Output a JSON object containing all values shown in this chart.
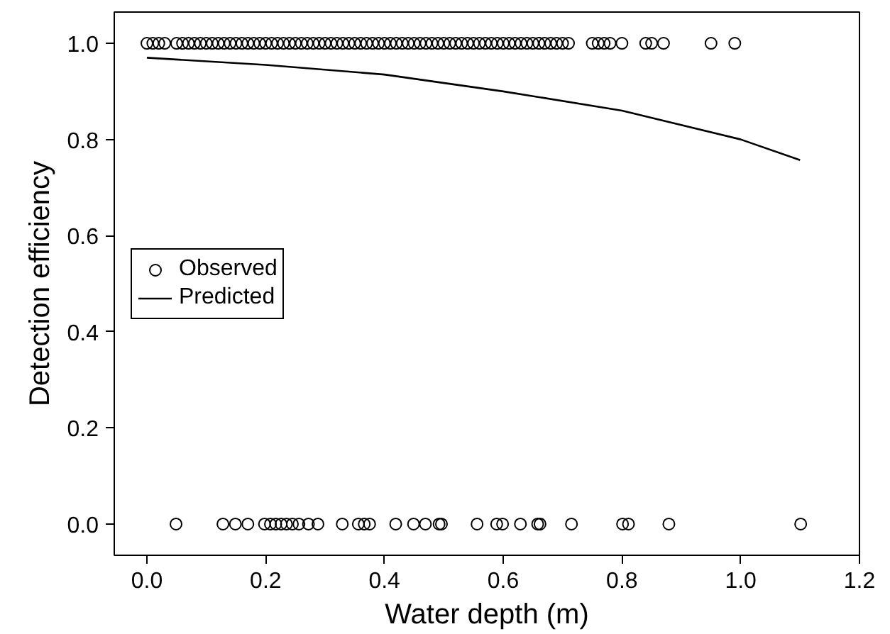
{
  "chart_data": {
    "type": "scatter",
    "xlabel": "Water depth (m)",
    "ylabel": "Detection efficiency",
    "xlim": [
      -0.055,
      1.2
    ],
    "ylim": [
      -0.065,
      1.065
    ],
    "xticks": [
      {
        "value": 0,
        "label": "0.0"
      },
      0.2,
      0.4,
      0.6,
      0.8,
      {
        "value": 1,
        "label": "1.0"
      },
      1.2
    ],
    "yticks": [
      {
        "value": 0,
        "label": "0.0"
      },
      0.2,
      0.4,
      0.6,
      0.8,
      {
        "value": 1,
        "label": "1.0"
      }
    ],
    "grid": false,
    "legend": "left",
    "series": [
      {
        "name": "Observed",
        "marker": "circle",
        "color": "#000000",
        "x": [
          0.0,
          0.01,
          0.02,
          0.03,
          0.05,
          0.06,
          0.07,
          0.08,
          0.09,
          0.1,
          0.11,
          0.12,
          0.13,
          0.14,
          0.15,
          0.16,
          0.17,
          0.18,
          0.19,
          0.2,
          0.21,
          0.22,
          0.23,
          0.24,
          0.25,
          0.26,
          0.27,
          0.28,
          0.29,
          0.3,
          0.31,
          0.32,
          0.33,
          0.34,
          0.35,
          0.36,
          0.37,
          0.38,
          0.39,
          0.4,
          0.41,
          0.42,
          0.43,
          0.44,
          0.45,
          0.46,
          0.47,
          0.48,
          0.49,
          0.5,
          0.51,
          0.52,
          0.53,
          0.54,
          0.55,
          0.56,
          0.57,
          0.58,
          0.59,
          0.6,
          0.61,
          0.62,
          0.63,
          0.64,
          0.65,
          0.66,
          0.67,
          0.68,
          0.69,
          0.7,
          0.71,
          0.75,
          0.76,
          0.77,
          0.78,
          0.8,
          0.84,
          0.85,
          0.87,
          0.95,
          0.99,
          0.049,
          0.128,
          0.149,
          0.17,
          0.198,
          0.208,
          0.217,
          0.226,
          0.235,
          0.245,
          0.256,
          0.272,
          0.288,
          0.329,
          0.356,
          0.366,
          0.375,
          0.419,
          0.449,
          0.469,
          0.492,
          0.496,
          0.556,
          0.589,
          0.599,
          0.629,
          0.658,
          0.662,
          0.715,
          0.801,
          0.811,
          0.879,
          1.101
        ],
        "values": [
          1,
          1,
          1,
          1,
          1,
          1,
          1,
          1,
          1,
          1,
          1,
          1,
          1,
          1,
          1,
          1,
          1,
          1,
          1,
          1,
          1,
          1,
          1,
          1,
          1,
          1,
          1,
          1,
          1,
          1,
          1,
          1,
          1,
          1,
          1,
          1,
          1,
          1,
          1,
          1,
          1,
          1,
          1,
          1,
          1,
          1,
          1,
          1,
          1,
          1,
          1,
          1,
          1,
          1,
          1,
          1,
          1,
          1,
          1,
          1,
          1,
          1,
          1,
          1,
          1,
          1,
          1,
          1,
          1,
          1,
          1,
          1,
          1,
          1,
          1,
          1,
          1,
          1,
          1,
          1,
          1,
          0,
          0,
          0,
          0,
          0,
          0,
          0,
          0,
          0,
          0,
          0,
          0,
          0,
          0,
          0,
          0,
          0,
          0,
          0,
          0,
          0,
          0,
          0,
          0,
          0,
          0,
          0,
          0,
          0,
          0,
          0,
          0,
          0
        ]
      },
      {
        "name": "Predicted",
        "type": "line",
        "line_style": "solid",
        "color": "#000000",
        "x": [
          0,
          0.2,
          0.4,
          0.6,
          0.8,
          1.0,
          1.1
        ],
        "values": [
          0.97,
          0.955,
          0.935,
          0.9,
          0.86,
          0.8,
          0.757
        ]
      }
    ]
  }
}
